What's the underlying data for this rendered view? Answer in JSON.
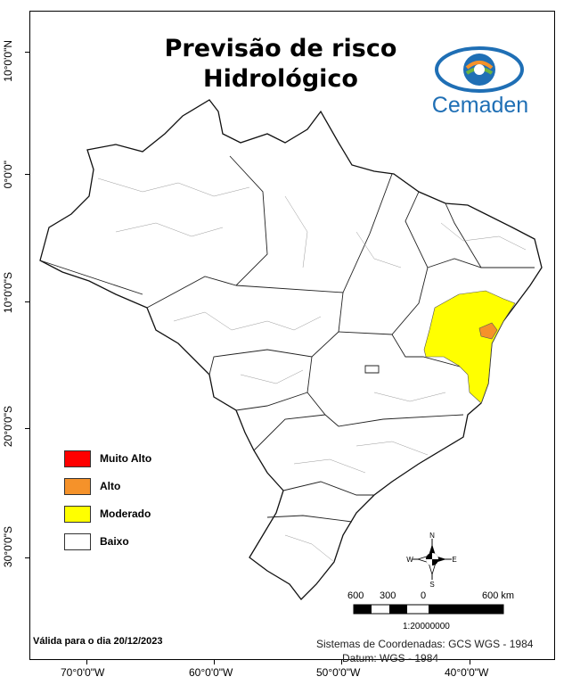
{
  "map": {
    "title_line1": "Previsão de risco",
    "title_line2": "Hidrológico",
    "brand": "Cemaden",
    "valid_date": "Válida para o dia 20/12/2023",
    "coord_system": "Sistemas de Coordenadas: GCS WGS - 1984",
    "datum": "Datum: WGS - 1984",
    "scale_ratio": "1:20000000"
  },
  "lat_labels": [
    "10°0'0\"N",
    "0°0'0\"",
    "10°0'0\"S",
    "20°0'0\"S",
    "30°0'0\"S"
  ],
  "lon_labels": [
    "70°0'0\"W",
    "60°0'0\"W",
    "50°0'0\"W",
    "40°0'0\"W"
  ],
  "legend": [
    {
      "label": "Muito Alto",
      "color": "#ff0000"
    },
    {
      "label": "Alto",
      "color": "#f5922a"
    },
    {
      "label": "Moderado",
      "color": "#ffff00"
    },
    {
      "label": "Baixo",
      "color": "#ffffff"
    }
  ],
  "compass": {
    "n": "N",
    "s": "S",
    "e": "E",
    "w": "W"
  },
  "scale": {
    "labels": [
      "600",
      "300",
      "0",
      "600 km"
    ]
  },
  "colors": {
    "moderate": "#ffff00",
    "high": "#f5922a",
    "brand_blue": "#1f6fb5"
  }
}
